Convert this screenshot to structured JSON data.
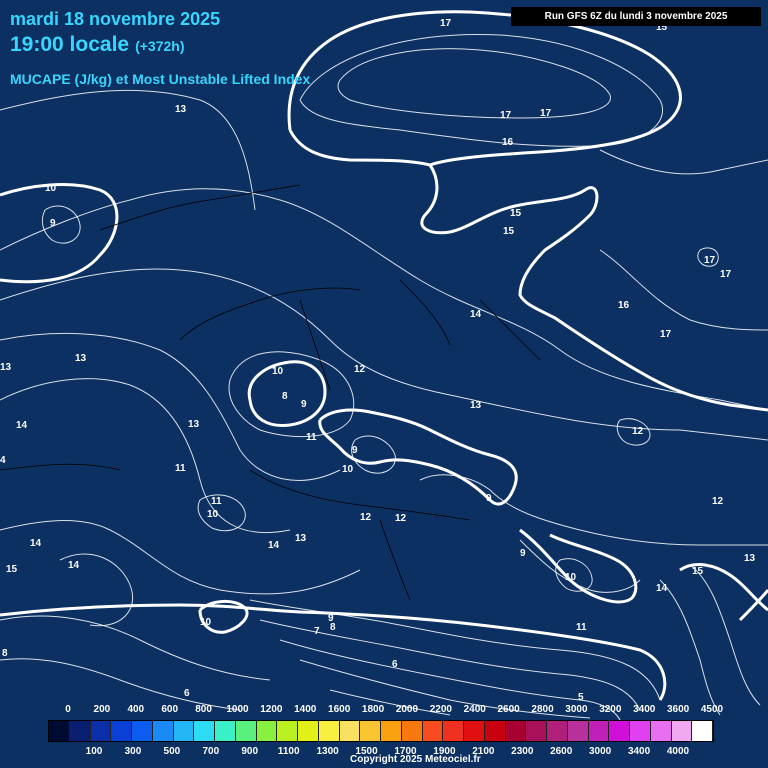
{
  "header": {
    "date_line": "mardi 18 novembre 2025",
    "time_line": "19:00 locale",
    "offset": "(+372h)",
    "subtitle": "MUCAPE (J/kg) et Most Unstable Lifted Index",
    "run_info": "Run GFS 6Z du lundi 3 novembre 2025"
  },
  "footer": {
    "copyright": "Copyright 2025 Meteociel.fr"
  },
  "colors": {
    "background": "#0b3061",
    "title": "#38d6ff",
    "contour": "#ffffff"
  },
  "legend": {
    "top_ticks": [
      "0",
      "200",
      "400",
      "600",
      "800",
      "1000",
      "1200",
      "1400",
      "1600",
      "1800",
      "2000",
      "2200",
      "2400",
      "2600",
      "2800",
      "3000",
      "3200",
      "3400",
      "3600",
      "4500"
    ],
    "bottom_ticks": [
      "100",
      "300",
      "500",
      "700",
      "900",
      "1100",
      "1300",
      "1500",
      "1700",
      "1900",
      "2100",
      "2300",
      "2600",
      "3000",
      "3400",
      "4000"
    ],
    "colors": [
      "#000b33",
      "#0a1f72",
      "#0b2fa8",
      "#0a40d6",
      "#0c5cf0",
      "#1a8af4",
      "#22b6f4",
      "#2cdcf2",
      "#3af0c8",
      "#5af080",
      "#8af040",
      "#b8f020",
      "#e0f018",
      "#f8f040",
      "#f8e060",
      "#f8c430",
      "#f8a010",
      "#f87810",
      "#f84c20",
      "#f03020",
      "#e01010",
      "#c80010",
      "#a80030",
      "#a8105a",
      "#b0207a",
      "#b8309c",
      "#c020b8",
      "#d010d8",
      "#e040f0",
      "#e870f0",
      "#f0a8f0",
      "#ffffff"
    ]
  },
  "contour_labels": [
    "17",
    "17",
    "15",
    "13",
    "10",
    "9",
    "17",
    "16",
    "15",
    "15",
    "17",
    "17",
    "16",
    "17",
    "14",
    "13",
    "13",
    "10",
    "8",
    "9",
    "12",
    "14",
    "13",
    "11",
    "9",
    "10",
    "4",
    "13",
    "12",
    "11",
    "10",
    "11",
    "12",
    "12",
    "14",
    "13",
    "9",
    "9",
    "10",
    "12",
    "14",
    "14",
    "15",
    "15",
    "13",
    "10",
    "9",
    "8",
    "7",
    "6",
    "6",
    "8",
    "14",
    "11",
    "5"
  ]
}
